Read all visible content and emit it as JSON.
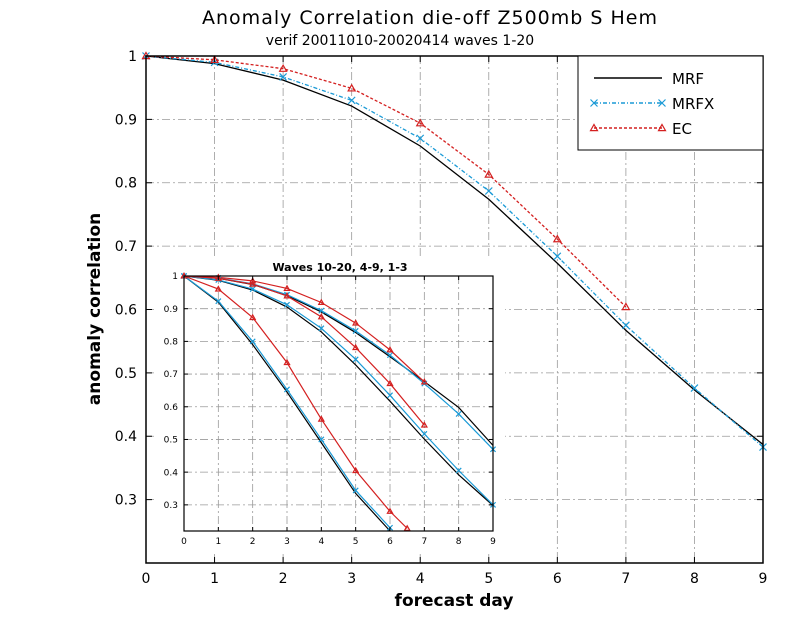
{
  "chart_data": [
    {
      "type": "line",
      "title": "Anomaly Correlation die-off   Z500mb S Hem",
      "subtitle": "verif 20011010-20020414  waves 1-20",
      "xlabel": "forecast day",
      "ylabel": "anomaly correlation",
      "xlim": [
        0,
        9
      ],
      "ylim": [
        0.2,
        1.0
      ],
      "xticks": [
        "0",
        "1",
        "2",
        "3",
        "4",
        "5",
        "6",
        "7",
        "8",
        "9"
      ],
      "yticks": [
        "0.3",
        "0.4",
        "0.5",
        "0.6",
        "0.7",
        "0.8",
        "0.9",
        "1"
      ],
      "grid": true,
      "legend_position": "top-right",
      "series": [
        {
          "name": "MRF",
          "color": "#000000",
          "style": "solid",
          "marker": "none",
          "x": [
            0,
            1,
            2,
            3,
            4,
            5,
            6,
            7,
            8,
            9
          ],
          "values": [
            1.0,
            0.988,
            0.962,
            0.921,
            0.858,
            0.774,
            0.673,
            0.567,
            0.473,
            0.387
          ]
        },
        {
          "name": "MRFX",
          "color": "#1a9ad6",
          "style": "dash-dot",
          "marker": "x",
          "x": [
            0,
            1,
            2,
            3,
            4,
            5,
            6,
            7,
            8,
            9
          ],
          "values": [
            1.0,
            0.99,
            0.967,
            0.93,
            0.87,
            0.787,
            0.684,
            0.575,
            0.476,
            0.383
          ]
        },
        {
          "name": "EC",
          "color": "#d42020",
          "style": "dashed",
          "marker": "triangle",
          "x": [
            0,
            1,
            2,
            3,
            4,
            5,
            6,
            7
          ],
          "values": [
            1.0,
            0.994,
            0.98,
            0.949,
            0.894,
            0.813,
            0.711,
            0.604
          ]
        }
      ]
    },
    {
      "type": "line",
      "title": "Waves 10-20, 4-9, 1-3",
      "xlim": [
        0,
        9
      ],
      "ylim": [
        0.22,
        1.0
      ],
      "xticks": [
        "0",
        "1",
        "2",
        "3",
        "4",
        "5",
        "6",
        "7",
        "8",
        "9"
      ],
      "yticks": [
        "0.3",
        "0.4",
        "0.5",
        "0.6",
        "0.7",
        "0.8",
        "0.9",
        "1"
      ],
      "grid": true,
      "series": [
        {
          "group": "1-3",
          "color": "#000000",
          "marker": "none",
          "x": [
            0,
            1,
            2,
            3,
            4,
            5,
            6,
            7,
            8,
            9
          ],
          "values": [
            1.0,
            0.993,
            0.974,
            0.94,
            0.89,
            0.827,
            0.753,
            0.677,
            0.598,
            0.482
          ]
        },
        {
          "group": "1-3",
          "color": "#1a9ad6",
          "marker": "x",
          "x": [
            0,
            1,
            2,
            3,
            4,
            5,
            6,
            7,
            8,
            9
          ],
          "values": [
            1.0,
            0.994,
            0.976,
            0.943,
            0.894,
            0.832,
            0.758,
            0.671,
            0.578,
            0.47
          ]
        },
        {
          "group": "1-3",
          "color": "#d42020",
          "marker": "triangle",
          "x": [
            0,
            1,
            2,
            3,
            4,
            5,
            6,
            7
          ],
          "values": [
            1.0,
            0.996,
            0.985,
            0.962,
            0.919,
            0.856,
            0.774,
            0.676
          ]
        },
        {
          "group": "4-9",
          "color": "#000000",
          "marker": "none",
          "x": [
            0,
            1,
            2,
            3,
            4,
            5,
            6,
            7,
            8,
            9
          ],
          "values": [
            1.0,
            0.987,
            0.957,
            0.905,
            0.829,
            0.728,
            0.617,
            0.501,
            0.392,
            0.298
          ]
        },
        {
          "group": "4-9",
          "color": "#1a9ad6",
          "marker": "x",
          "x": [
            0,
            1,
            2,
            3,
            4,
            5,
            6,
            7,
            8,
            9
          ],
          "values": [
            1.0,
            0.988,
            0.96,
            0.912,
            0.84,
            0.745,
            0.635,
            0.517,
            0.405,
            0.3
          ]
        },
        {
          "group": "4-9",
          "color": "#d42020",
          "marker": "triangle",
          "x": [
            0,
            1,
            2,
            3,
            4,
            5,
            6,
            7
          ],
          "values": [
            1.0,
            0.993,
            0.975,
            0.939,
            0.875,
            0.781,
            0.671,
            0.544
          ]
        },
        {
          "group": "10-20",
          "color": "#000000",
          "marker": "none",
          "x": [
            0,
            1,
            2,
            3,
            4,
            5,
            6
          ],
          "values": [
            1.0,
            0.92,
            0.79,
            0.645,
            0.49,
            0.335,
            0.22
          ]
        },
        {
          "group": "10-20",
          "color": "#1a9ad6",
          "marker": "x",
          "x": [
            0,
            1,
            2,
            3,
            4,
            5,
            6
          ],
          "values": [
            1.0,
            0.923,
            0.8,
            0.653,
            0.5,
            0.344,
            0.23
          ]
        },
        {
          "group": "10-20",
          "color": "#d42020",
          "marker": "triangle",
          "x": [
            0,
            1,
            2,
            3,
            4,
            5,
            6,
            6.5
          ],
          "values": [
            1.0,
            0.96,
            0.873,
            0.735,
            0.562,
            0.405,
            0.28,
            0.228
          ]
        }
      ]
    }
  ]
}
